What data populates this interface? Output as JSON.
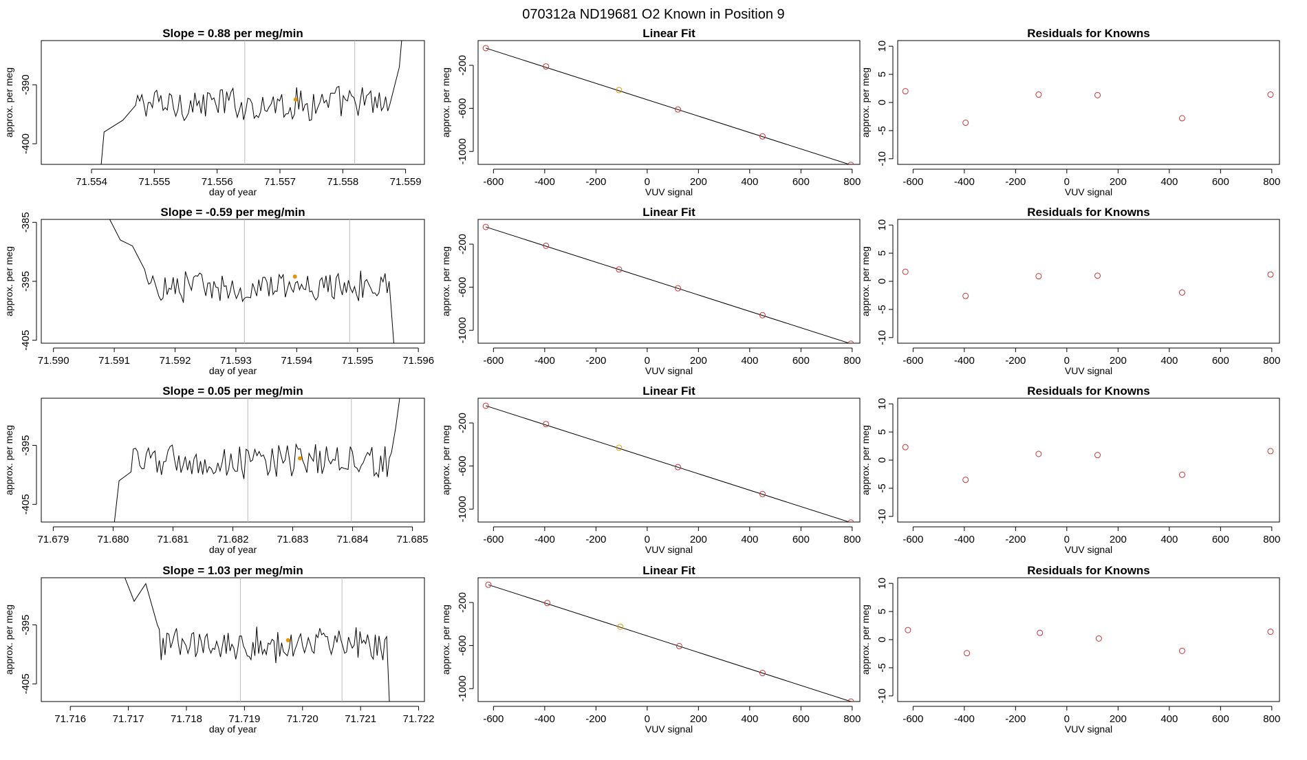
{
  "page_title": "070312a     ND19681   O2 Known in Position  9",
  "colors": {
    "axis": "#000000",
    "trace": "#000000",
    "vline": "#bbbbbb",
    "point_red": "#cc3333",
    "point_orange": "#e69500"
  },
  "chart_data": [
    {
      "type": "line",
      "row": 0,
      "panel": "time",
      "title": "Slope =  0.88  per meg/min",
      "xlabel": "day of year",
      "ylabel": "approx. per meg",
      "xlim": [
        71.5532,
        71.5593
      ],
      "ylim": [
        -403.5,
        -382.5
      ],
      "xticks": [
        71.554,
        71.555,
        71.556,
        71.557,
        71.558,
        71.559
      ],
      "xtick_labels": [
        "71.554",
        "71.555",
        "71.556",
        "71.557",
        "71.558",
        "71.559"
      ],
      "yticks": [
        -400,
        -390
      ],
      "ytick_labels": [
        "-400",
        "-390"
      ],
      "vlines": [
        71.55644,
        71.55819
      ],
      "baseline": -393.2,
      "noise": 1.6,
      "segments": [
        [
          71.5541,
          -410
        ],
        [
          71.5542,
          -398
        ],
        [
          71.5545,
          -396
        ],
        [
          71.5547,
          -393.5
        ]
      ],
      "end_segments": [
        [
          71.55875,
          -393.3
        ],
        [
          71.5589,
          -387
        ],
        [
          71.55895,
          -381
        ]
      ],
      "marker": {
        "x": 71.55725,
        "y": -392.5
      }
    },
    {
      "type": "scatter",
      "row": 0,
      "panel": "fit",
      "title": "Linear Fit",
      "xlabel": "VUV signal",
      "ylabel": "approx. per meg",
      "xlim": [
        -660,
        830
      ],
      "ylim": [
        -1120,
        30
      ],
      "xticks": [
        -600,
        -400,
        -200,
        0,
        200,
        400,
        600,
        800
      ],
      "xtick_labels": [
        "-600",
        "-400",
        "-200",
        "0",
        "200",
        "400",
        "600",
        "800"
      ],
      "yticks": [
        -1000,
        -600,
        -200
      ],
      "ytick_labels": [
        "-1000",
        "-600",
        "-200"
      ],
      "x": [
        -630,
        -395,
        -110,
        120,
        450,
        795
      ],
      "y": [
        -40,
        -210,
        -430,
        -610,
        -860,
        -1125
      ],
      "highlight": [
        2
      ],
      "fit_line": {
        "x": [
          -630,
          795
        ],
        "y": [
          -40,
          -1125
        ]
      }
    },
    {
      "type": "scatter",
      "row": 0,
      "panel": "resid",
      "title": "Residuals for Knowns",
      "xlabel": "VUV signal",
      "ylabel": "approx. per meg",
      "xlim": [
        -660,
        830
      ],
      "ylim": [
        -11,
        11
      ],
      "xticks": [
        -600,
        -400,
        -200,
        0,
        200,
        400,
        600,
        800
      ],
      "xtick_labels": [
        "-600",
        "-400",
        "-200",
        "0",
        "200",
        "400",
        "600",
        "800"
      ],
      "yticks": [
        -10,
        -5,
        0,
        5,
        10
      ],
      "ytick_labels": [
        "-10",
        "-5",
        "0",
        "5",
        "10"
      ],
      "x": [
        -630,
        -395,
        -110,
        120,
        450,
        795
      ],
      "y": [
        2.0,
        -3.6,
        1.4,
        1.3,
        -2.8,
        1.4
      ]
    },
    {
      "type": "line",
      "row": 1,
      "panel": "time",
      "title": "Slope =  -0.59  per meg/min",
      "xlabel": "day of year",
      "ylabel": "approx. per meg",
      "xlim": [
        71.5898,
        71.5961
      ],
      "ylim": [
        -405.5,
        -384.5
      ],
      "xticks": [
        71.59,
        71.591,
        71.592,
        71.593,
        71.594,
        71.595,
        71.596
      ],
      "xtick_labels": [
        "71.590",
        "71.591",
        "71.592",
        "71.593",
        "71.594",
        "71.595",
        "71.596"
      ],
      "yticks": [
        -405,
        -395,
        -385
      ],
      "ytick_labels": [
        "-405",
        "-395",
        "-385"
      ],
      "vlines": [
        71.59314,
        71.59487
      ],
      "baseline": -396.0,
      "noise": 1.4,
      "segments": [
        [
          71.5909,
          -384
        ],
        [
          71.5911,
          -388
        ],
        [
          71.5913,
          -389
        ],
        [
          71.5915,
          -393
        ]
      ],
      "end_segments": [
        [
          71.59552,
          -395
        ],
        [
          71.5956,
          -406
        ]
      ],
      "marker": {
        "x": 71.59397,
        "y": -394.2
      }
    },
    {
      "type": "scatter",
      "row": 1,
      "panel": "fit",
      "title": "Linear Fit",
      "xlabel": "VUV signal",
      "ylabel": "approx. per meg",
      "xlim": [
        -660,
        830
      ],
      "ylim": [
        -1120,
        30
      ],
      "xticks": [
        -600,
        -400,
        -200,
        0,
        200,
        400,
        600,
        800
      ],
      "xtick_labels": [
        "-600",
        "-400",
        "-200",
        "0",
        "200",
        "400",
        "600",
        "800"
      ],
      "yticks": [
        -1000,
        -600,
        -200
      ],
      "ytick_labels": [
        "-1000",
        "-600",
        "-200"
      ],
      "x": [
        -630,
        -395,
        -110,
        120,
        450,
        795
      ],
      "y": [
        -40,
        -215,
        -435,
        -610,
        -860,
        -1125
      ],
      "highlight": [],
      "fit_line": {
        "x": [
          -630,
          795
        ],
        "y": [
          -40,
          -1125
        ]
      }
    },
    {
      "type": "scatter",
      "row": 1,
      "panel": "resid",
      "title": "Residuals for Knowns",
      "xlabel": "VUV signal",
      "ylabel": "approx. per meg",
      "xlim": [
        -660,
        830
      ],
      "ylim": [
        -11,
        11
      ],
      "xticks": [
        -600,
        -400,
        -200,
        0,
        200,
        400,
        600,
        800
      ],
      "xtick_labels": [
        "-600",
        "-400",
        "-200",
        "0",
        "200",
        "400",
        "600",
        "800"
      ],
      "yticks": [
        -10,
        -5,
        0,
        5,
        10
      ],
      "ytick_labels": [
        "-10",
        "-5",
        "0",
        "5",
        "10"
      ],
      "x": [
        -630,
        -395,
        -110,
        120,
        450,
        795
      ],
      "y": [
        1.7,
        -2.6,
        0.9,
        1.0,
        -2.0,
        1.2
      ]
    },
    {
      "type": "line",
      "row": 2,
      "panel": "time",
      "title": "Slope =  0.05  per meg/min",
      "xlabel": "day of year",
      "ylabel": "approx. per meg",
      "xlim": [
        71.6788,
        71.6852
      ],
      "ylim": [
        -408,
        -387
      ],
      "xticks": [
        71.679,
        71.68,
        71.681,
        71.682,
        71.683,
        71.684,
        71.685
      ],
      "xtick_labels": [
        "71.679",
        "71.680",
        "71.681",
        "71.682",
        "71.683",
        "71.684",
        "71.685"
      ],
      "yticks": [
        -405,
        -395
      ],
      "ytick_labels": [
        "-405",
        "-395"
      ],
      "vlines": [
        71.68225,
        71.68398
      ],
      "baseline": -397.8,
      "noise": 1.6,
      "segments": [
        [
          71.68,
          -410
        ],
        [
          71.6801,
          -401
        ],
        [
          71.6803,
          -399.5
        ]
      ],
      "end_segments": [
        [
          71.68465,
          -396.2
        ],
        [
          71.68472,
          -392
        ],
        [
          71.6848,
          -386
        ]
      ],
      "marker": {
        "x": 71.68312,
        "y": -397.2
      }
    },
    {
      "type": "scatter",
      "row": 2,
      "panel": "fit",
      "title": "Linear Fit",
      "xlabel": "VUV signal",
      "ylabel": "approx. per meg",
      "xlim": [
        -660,
        830
      ],
      "ylim": [
        -1120,
        30
      ],
      "xticks": [
        -600,
        -400,
        -200,
        0,
        200,
        400,
        600,
        800
      ],
      "xtick_labels": [
        "-600",
        "-400",
        "-200",
        "0",
        "200",
        "400",
        "600",
        "800"
      ],
      "yticks": [
        -1000,
        -600,
        -200
      ],
      "ytick_labels": [
        "-1000",
        "-600",
        "-200"
      ],
      "x": [
        -630,
        -395,
        -110,
        120,
        450,
        795
      ],
      "y": [
        -40,
        -210,
        -430,
        -610,
        -860,
        -1125
      ],
      "highlight": [
        2
      ],
      "fit_line": {
        "x": [
          -630,
          795
        ],
        "y": [
          -40,
          -1125
        ]
      }
    },
    {
      "type": "scatter",
      "row": 2,
      "panel": "resid",
      "title": "Residuals for Knowns",
      "xlabel": "VUV signal",
      "ylabel": "approx. per meg",
      "xlim": [
        -660,
        830
      ],
      "ylim": [
        -11,
        11
      ],
      "xticks": [
        -600,
        -400,
        -200,
        0,
        200,
        400,
        600,
        800
      ],
      "xtick_labels": [
        "-600",
        "-400",
        "-200",
        "0",
        "200",
        "400",
        "600",
        "800"
      ],
      "yticks": [
        -10,
        -5,
        0,
        5,
        10
      ],
      "ytick_labels": [
        "-10",
        "-5",
        "0",
        "5",
        "10"
      ],
      "x": [
        -630,
        -395,
        -110,
        120,
        450,
        795
      ],
      "y": [
        2.3,
        -3.5,
        1.1,
        0.9,
        -2.6,
        1.6
      ]
    },
    {
      "type": "line",
      "row": 3,
      "panel": "time",
      "title": "Slope =  1.03  per meg/min",
      "xlabel": "day of year",
      "ylabel": "approx. per meg",
      "xlim": [
        71.7155,
        71.7221
      ],
      "ylim": [
        -408,
        -387
      ],
      "xticks": [
        71.716,
        71.717,
        71.718,
        71.719,
        71.72,
        71.721,
        71.722
      ],
      "xtick_labels": [
        "71.716",
        "71.717",
        "71.718",
        "71.719",
        "71.720",
        "71.721",
        "71.722"
      ],
      "yticks": [
        -405,
        -395
      ],
      "ytick_labels": [
        "-405",
        "-395"
      ],
      "vlines": [
        71.71893,
        71.72068
      ],
      "baseline": -398.3,
      "noise": 1.6,
      "segments": [
        [
          71.7169,
          -386
        ],
        [
          71.7171,
          -391
        ],
        [
          71.7173,
          -388
        ],
        [
          71.7175,
          -395
        ]
      ],
      "end_segments": [
        [
          71.72145,
          -397
        ],
        [
          71.7215,
          -409
        ]
      ],
      "marker": {
        "x": 71.71975,
        "y": -397.6
      }
    },
    {
      "type": "scatter",
      "row": 3,
      "panel": "fit",
      "title": "Linear Fit",
      "xlabel": "VUV signal",
      "ylabel": "approx. per meg",
      "xlim": [
        -660,
        830
      ],
      "ylim": [
        -1120,
        30
      ],
      "xticks": [
        -600,
        -400,
        -200,
        0,
        200,
        400,
        600,
        800
      ],
      "xtick_labels": [
        "-600",
        "-400",
        "-200",
        "0",
        "200",
        "400",
        "600",
        "800"
      ],
      "yticks": [
        -1000,
        -600,
        -200
      ],
      "ytick_labels": [
        "-1000",
        "-600",
        "-200"
      ],
      "x": [
        -620,
        -390,
        -105,
        125,
        450,
        795
      ],
      "y": [
        -35,
        -205,
        -425,
        -605,
        -855,
        -1120
      ],
      "highlight": [
        2
      ],
      "fit_line": {
        "x": [
          -620,
          795
        ],
        "y": [
          -35,
          -1120
        ]
      }
    },
    {
      "type": "scatter",
      "row": 3,
      "panel": "resid",
      "title": "Residuals for Knowns",
      "xlabel": "VUV signal",
      "ylabel": "approx. per meg",
      "xlim": [
        -660,
        830
      ],
      "ylim": [
        -11,
        11
      ],
      "xticks": [
        -600,
        -400,
        -200,
        0,
        200,
        400,
        600,
        800
      ],
      "xtick_labels": [
        "-600",
        "-400",
        "-200",
        "0",
        "200",
        "400",
        "600",
        "800"
      ],
      "yticks": [
        -10,
        -5,
        0,
        5,
        10
      ],
      "ytick_labels": [
        "-10",
        "-5",
        "0",
        "5",
        "10"
      ],
      "x": [
        -620,
        -390,
        -105,
        125,
        450,
        795
      ],
      "y": [
        1.7,
        -2.4,
        1.2,
        0.2,
        -2.0,
        1.4
      ]
    }
  ]
}
